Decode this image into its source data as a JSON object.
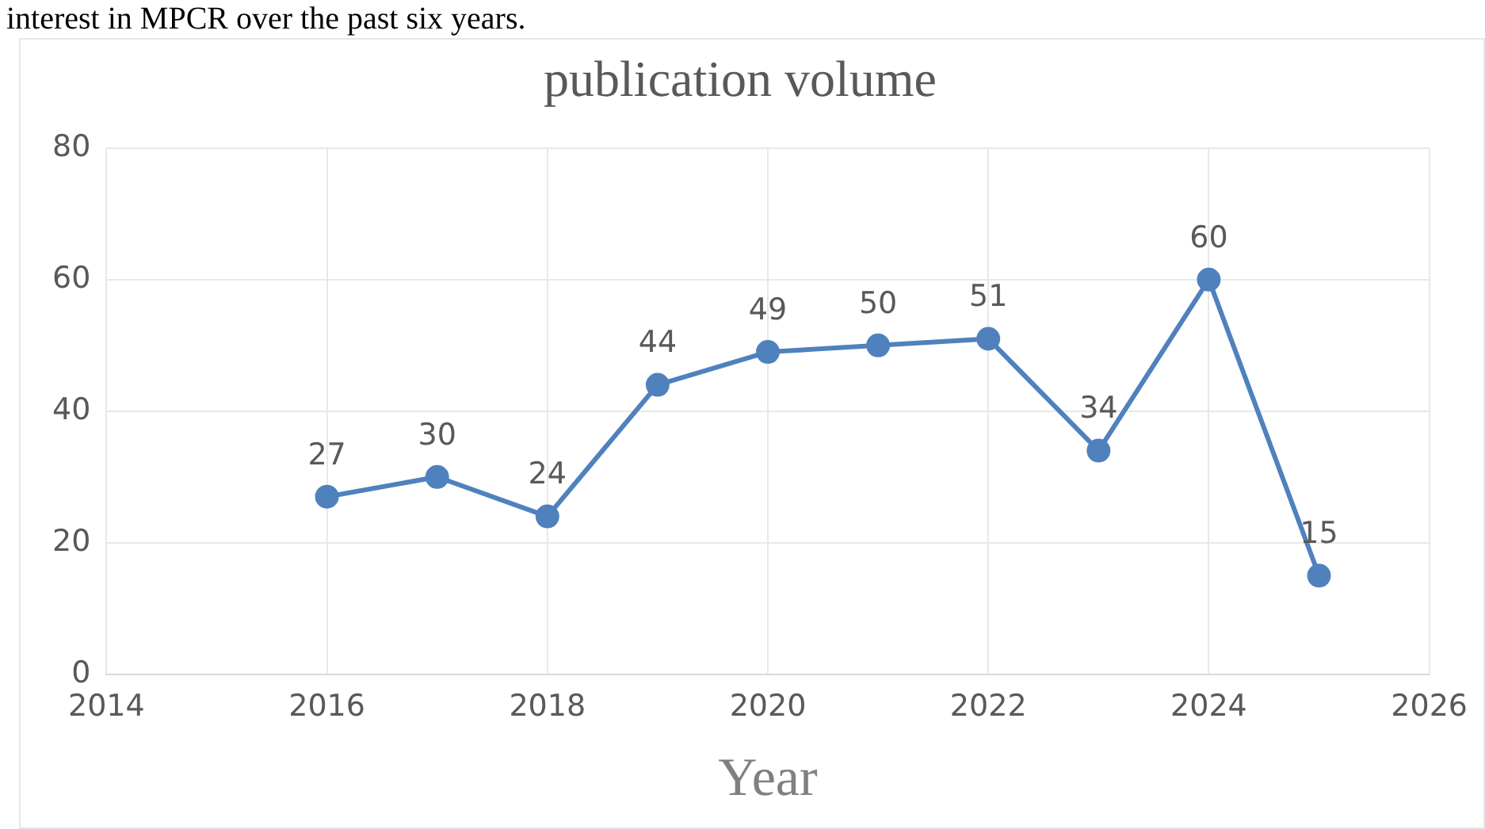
{
  "chart_data": {
    "type": "line",
    "title": "publication volume",
    "xlabel": "Year",
    "annotations": [
      "interest in MPCR over the past six years."
    ],
    "x": [
      2016,
      2017,
      2018,
      2019,
      2020,
      2021,
      2022,
      2023,
      2024,
      2025
    ],
    "series": [
      {
        "color": "#4f81bd",
        "values": [
          27,
          30,
          24,
          44,
          49,
          50,
          51,
          34,
          60,
          15
        ]
      }
    ],
    "xlim": [
      2014,
      2026
    ],
    "xticks": [
      2014,
      2016,
      2018,
      2020,
      2022,
      2024,
      2026
    ],
    "ylim": [
      0,
      80
    ],
    "yticks": [
      0,
      20,
      40,
      60,
      80
    ],
    "grid": true,
    "marker": "circle",
    "line_style": "solid",
    "data_labels": true
  }
}
